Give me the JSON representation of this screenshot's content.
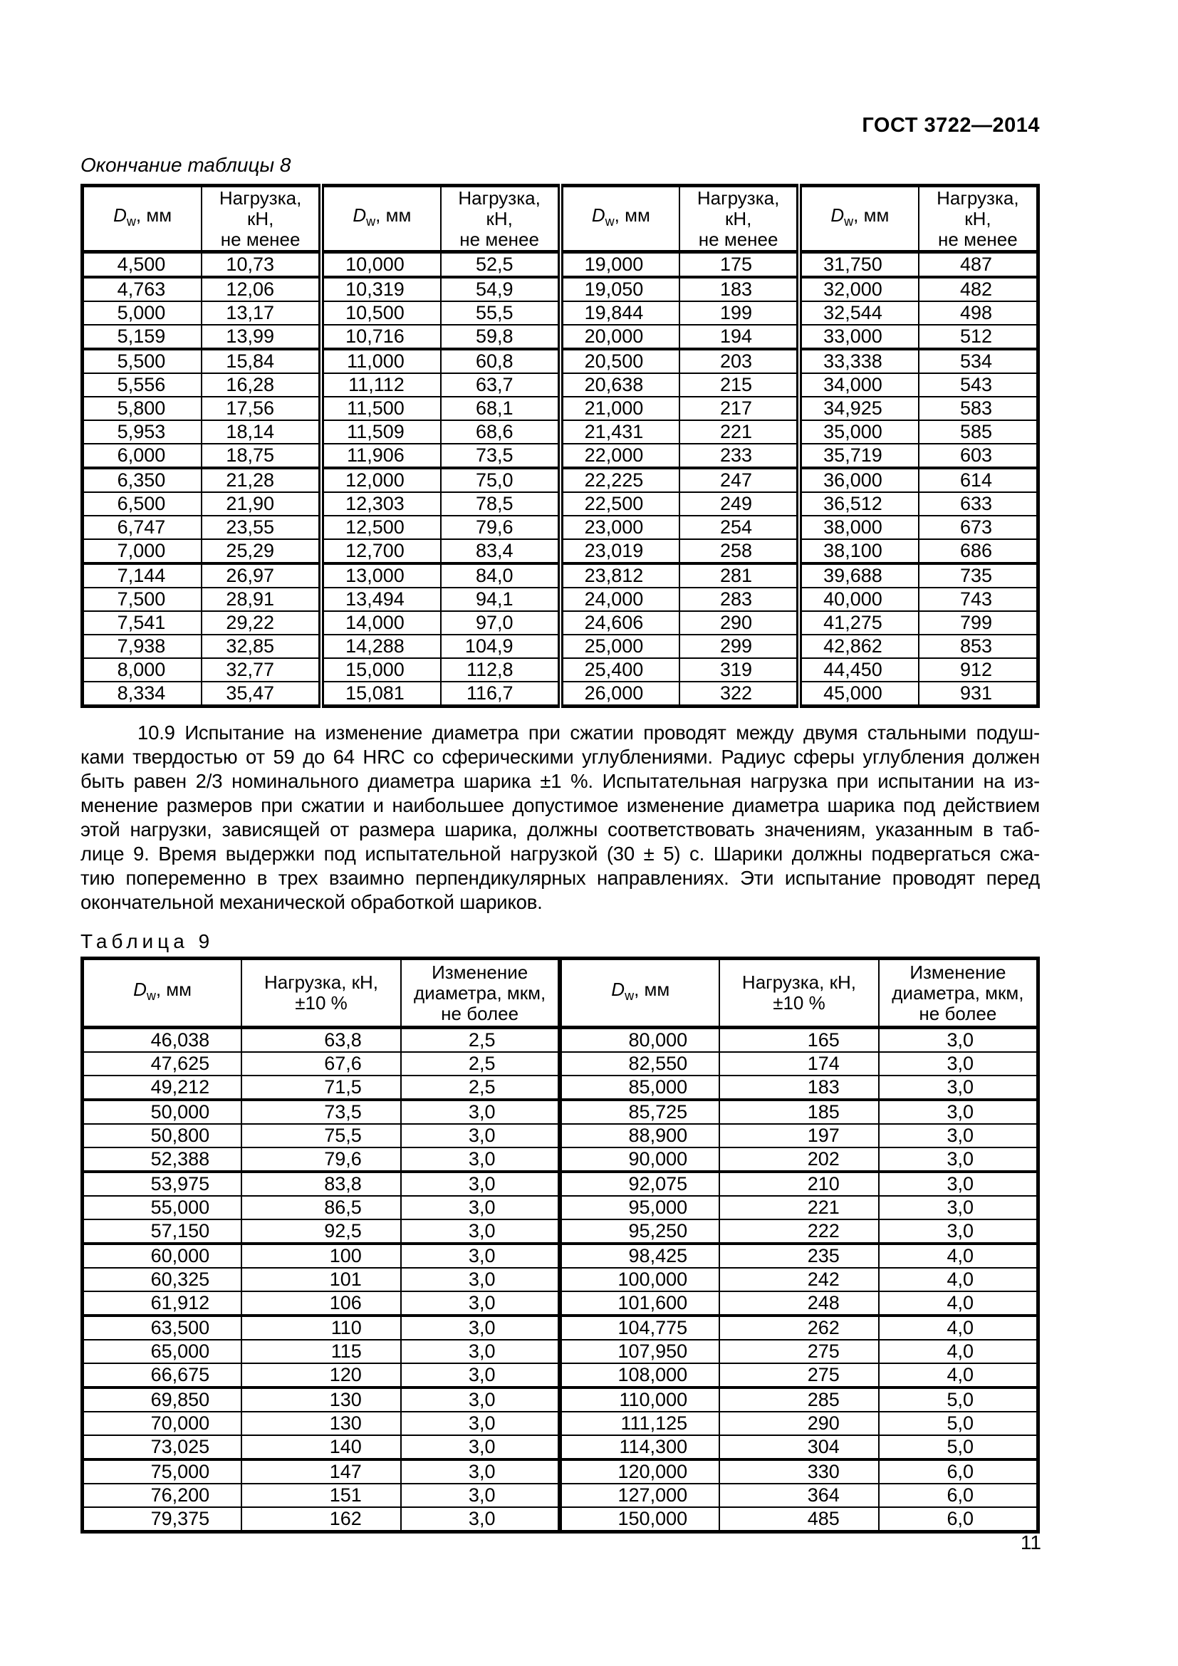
{
  "page": {
    "standard_ref": "ГОСТ 3722—2014",
    "page_number": "11"
  },
  "table8": {
    "caption": "Окончание таблицы 8",
    "header": {
      "dw_symbol": "D",
      "dw_sub": "w",
      "dw_unit": ", мм",
      "load_lines": [
        "Нагрузка,",
        "кН,",
        "не менее"
      ]
    },
    "rows": [
      [
        "4,500",
        "10,73",
        "10,000",
        "52,5",
        "19,000",
        "175",
        "31,750",
        "487"
      ],
      [
        "4,763",
        "12,06",
        "10,319",
        "54,9",
        "19,050",
        "183",
        "32,000",
        "482"
      ],
      [
        "5,000",
        "13,17",
        "10,500",
        "55,5",
        "19,844",
        "199",
        "32,544",
        "498"
      ],
      [
        "5,159",
        "13,99",
        "10,716",
        "59,8",
        "20,000",
        "194",
        "33,000",
        "512"
      ],
      [
        "5,500",
        "15,84",
        "11,000",
        "60,8",
        "20,500",
        "203",
        "33,338",
        "534"
      ],
      [
        "5,556",
        "16,28",
        "11,112",
        "63,7",
        "20,638",
        "215",
        "34,000",
        "543"
      ],
      [
        "5,800",
        "17,56",
        "11,500",
        "68,1",
        "21,000",
        "217",
        "34,925",
        "583"
      ],
      [
        "5,953",
        "18,14",
        "11,509",
        "68,6",
        "21,431",
        "221",
        "35,000",
        "585"
      ],
      [
        "6,000",
        "18,75",
        "11,906",
        "73,5",
        "22,000",
        "233",
        "35,719",
        "603"
      ],
      [
        "6,350",
        "21,28",
        "12,000",
        "75,0",
        "22,225",
        "247",
        "36,000",
        "614"
      ],
      [
        "6,500",
        "21,90",
        "12,303",
        "78,5",
        "22,500",
        "249",
        "36,512",
        "633"
      ],
      [
        "6,747",
        "23,55",
        "12,500",
        "79,6",
        "23,000",
        "254",
        "38,000",
        "673"
      ],
      [
        "7,000",
        "25,29",
        "12,700",
        "83,4",
        "23,019",
        "258",
        "38,100",
        "686"
      ],
      [
        "7,144",
        "26,97",
        "13,000",
        "84,0",
        "23,812",
        "281",
        "39,688",
        "735"
      ],
      [
        "7,500",
        "28,91",
        "13,494",
        "94,1",
        "24,000",
        "283",
        "40,000",
        "743"
      ],
      [
        "7,541",
        "29,22",
        "14,000",
        "97,0",
        "24,606",
        "290",
        "41,275",
        "799"
      ],
      [
        "7,938",
        "32,85",
        "14,288",
        "104,9",
        "25,000",
        "299",
        "42,862",
        "853"
      ],
      [
        "8,000",
        "32,77",
        "15,000",
        "112,8",
        "25,400",
        "319",
        "44,450",
        "912"
      ],
      [
        "8,334",
        "35,47",
        "15,081",
        "116,7",
        "26,000",
        "322",
        "45,000",
        "931"
      ]
    ],
    "thick_after": [
      0,
      3,
      8,
      12
    ]
  },
  "section_10_9": {
    "lines": [
      "10.9 Испытание на изменение диаметра при сжатии проводят между двумя стальными подуш-",
      "ками твердостью от 59 до 64 HRC со сферическими углублениями. Радиус сферы углубления должен",
      "быть равен 2/3 номинального диаметра шарика ±1 %. Испытательная нагрузка при испытании на из-",
      "менение размеров при сжатии и наибольшее допустимое изменение диаметра шарика под действием",
      "этой нагрузки, зависящей от размера шарика, должны соответствовать значениям, указанным в таб-",
      "лице 9. Время выдержки под испытательной нагрузкой (30 ± 5) с. Шарики должны подвергаться сжа-",
      "тию попеременно в трех взаимно перпендикулярных направлениях. Эти испытание проводят перед",
      "окончательной механической обработкой шариков."
    ]
  },
  "table9": {
    "caption": "Таблица 9",
    "header": {
      "dw_symbol": "D",
      "dw_sub": "w",
      "dw_unit": ", мм",
      "load_lines": [
        "Нагрузка, кН,",
        "±10 %"
      ],
      "change_lines": [
        "Изменение",
        "диаметра, мкм,",
        "не более"
      ]
    },
    "rows": [
      [
        "46,038",
        "63,8",
        "2,5",
        "80,000",
        "165",
        "3,0"
      ],
      [
        "47,625",
        "67,6",
        "2,5",
        "82,550",
        "174",
        "3,0"
      ],
      [
        "49,212",
        "71,5",
        "2,5",
        "85,000",
        "183",
        "3,0"
      ],
      [
        "50,000",
        "73,5",
        "3,0",
        "85,725",
        "185",
        "3,0"
      ],
      [
        "50,800",
        "75,5",
        "3,0",
        "88,900",
        "197",
        "3,0"
      ],
      [
        "52,388",
        "79,6",
        "3,0",
        "90,000",
        "202",
        "3,0"
      ],
      [
        "53,975",
        "83,8",
        "3,0",
        "92,075",
        "210",
        "3,0"
      ],
      [
        "55,000",
        "86,5",
        "3,0",
        "95,000",
        "221",
        "3,0"
      ],
      [
        "57,150",
        "92,5",
        "3,0",
        "95,250",
        "222",
        "3,0"
      ],
      [
        "60,000",
        "100",
        "3,0",
        "98,425",
        "235",
        "4,0"
      ],
      [
        "60,325",
        "101",
        "3,0",
        "100,000",
        "242",
        "4,0"
      ],
      [
        "61,912",
        "106",
        "3,0",
        "101,600",
        "248",
        "4,0"
      ],
      [
        "63,500",
        "110",
        "3,0",
        "104,775",
        "262",
        "4,0"
      ],
      [
        "65,000",
        "115",
        "3,0",
        "107,950",
        "275",
        "4,0"
      ],
      [
        "66,675",
        "120",
        "3,0",
        "108,000",
        "275",
        "4,0"
      ],
      [
        "69,850",
        "130",
        "3,0",
        "110,000",
        "285",
        "5,0"
      ],
      [
        "70,000",
        "130",
        "3,0",
        "111,125",
        "290",
        "5,0"
      ],
      [
        "73,025",
        "140",
        "3,0",
        "114,300",
        "304",
        "5,0"
      ],
      [
        "75,000",
        "147",
        "3,0",
        "120,000",
        "330",
        "6,0"
      ],
      [
        "76,200",
        "151",
        "3,0",
        "127,000",
        "364",
        "6,0"
      ],
      [
        "79,375",
        "162",
        "3,0",
        "150,000",
        "485",
        "6,0"
      ]
    ],
    "thick_after": [
      2,
      5,
      8,
      11,
      14,
      17
    ]
  }
}
